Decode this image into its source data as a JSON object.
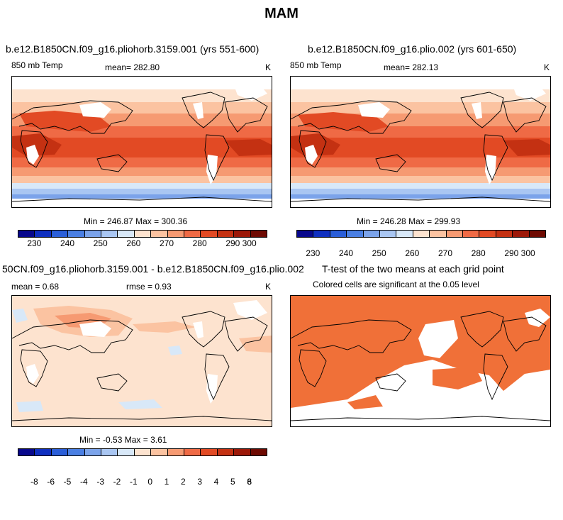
{
  "figure": {
    "title": "MAM"
  },
  "palettes": {
    "abs": [
      "#08088c",
      "#0f2fc0",
      "#2a5ed8",
      "#4a7fe3",
      "#7ba3ea",
      "#a9c6f2",
      "#d8e8f8",
      "#fde3cf",
      "#fbc3a1",
      "#f69a72",
      "#ef6a45",
      "#e24a24",
      "#c43112",
      "#9c1808",
      "#6e0a02"
    ],
    "diff": [
      "#08088c",
      "#0f2fc0",
      "#2a5ed8",
      "#4a7fe3",
      "#7ba3ea",
      "#a9c6f2",
      "#d8e8f8",
      "#fde3cf",
      "#fbc3a1",
      "#f69a72",
      "#ef6a45",
      "#e24a24",
      "#c43112",
      "#9c1808",
      "#6e0a02"
    ],
    "significant": "#f07038"
  },
  "panels": [
    {
      "title": "b.e12.B1850CN.f09_g16.pliohorb.3159.001 (yrs 551-600)",
      "variable": "850 mb Temp",
      "stat_label": "mean=",
      "stat_value": "282.80",
      "units": "K",
      "min_label": "Min =",
      "min_value": "246.87",
      "max_label": "Max =",
      "max_value": "300.36",
      "colorbar_ticks": [
        "230",
        "240",
        "250",
        "260",
        "270",
        "280",
        "290",
        "300"
      ]
    },
    {
      "title": "b.e12.B1850CN.f09_g16.plio.002 (yrs 601-650)",
      "variable": "850 mb Temp",
      "stat_label": "mean=",
      "stat_value": "282.13",
      "units": "K",
      "min_label": "Min =",
      "min_value": "246.28",
      "max_label": "Max =",
      "max_value": "299.93",
      "colorbar_ticks": [
        "230",
        "240",
        "250",
        "260",
        "270",
        "280",
        "290",
        "300"
      ]
    },
    {
      "title": "50CN.f09_g16.pliohorb.3159.001 - b.e12.B1850CN.f09_g16.plio.002",
      "mean_label": "mean =",
      "mean_value": "0.68",
      "rmse_label": "rmse =",
      "rmse_value": "0.93",
      "units": "K",
      "min_label": "Min =",
      "min_value": "-0.53",
      "max_label": "Max =",
      "max_value": "3.61",
      "colorbar_ticks": [
        "-8",
        "-6",
        "-5",
        "-4",
        "-3",
        "-2",
        "-1",
        "0",
        "1",
        "2",
        "3",
        "4",
        "5",
        "6",
        "8"
      ]
    },
    {
      "title": "T-test of the two means at each grid point",
      "subtitle": "Colored cells are significant at the 0.05 level"
    }
  ]
}
